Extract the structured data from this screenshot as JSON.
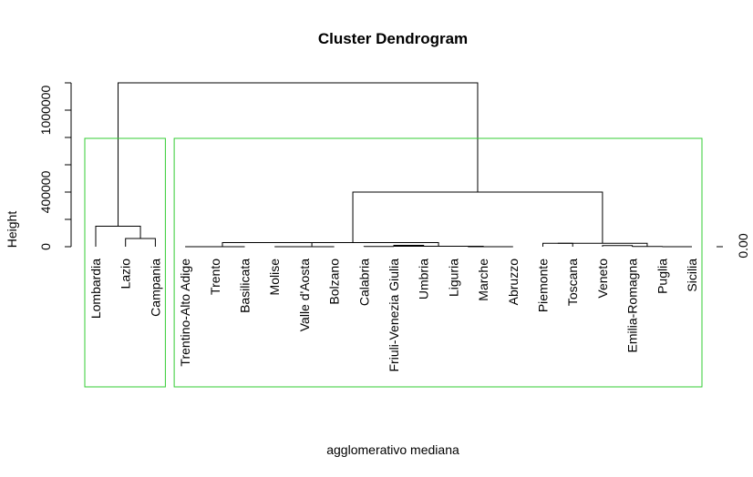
{
  "chart_data": {
    "type": "dendrogram",
    "title": "Cluster Dendrogram",
    "xlabel": "agglomerativo mediana",
    "ylabel": "Height",
    "ylim": [
      0,
      1200000
    ],
    "y_ticks": [
      {
        "value": 0,
        "label": "0"
      },
      {
        "value": 200000,
        "label": ""
      },
      {
        "value": 400000,
        "label": "400000"
      },
      {
        "value": 600000,
        "label": ""
      },
      {
        "value": 800000,
        "label": ""
      },
      {
        "value": 1000000,
        "label": "1000000"
      },
      {
        "value": 1200000,
        "label": ""
      }
    ],
    "side_axis_label": "0.00",
    "leaves": [
      "Lombardia",
      "Lazio",
      "Campania",
      "Trentino-Alto Adige",
      "Trento",
      "Basilicata",
      "Molise",
      "Valle d'Aosta",
      "Bolzano",
      "Calabria",
      "Friuli-Venezia Giulia",
      "Umbria",
      "Liguria",
      "Marche",
      "Abruzzo",
      "Piemonte",
      "Toscana",
      "Veneto",
      "Emilia-Romagna",
      "Puglia",
      "Sicilia"
    ],
    "merges": [
      {
        "a": [
          1
        ],
        "b": [
          2
        ],
        "height": 60000
      },
      {
        "a": [
          0
        ],
        "b": [
          1,
          2
        ],
        "height": 150000
      },
      {
        "a": [
          3
        ],
        "b": [
          4
        ],
        "height": 0
      },
      {
        "a": [
          3,
          4
        ],
        "b": [
          5
        ],
        "height": 0
      },
      {
        "a": [
          6
        ],
        "b": [
          7
        ],
        "height": 0
      },
      {
        "a": [
          6,
          7
        ],
        "b": [
          8
        ],
        "height": 0
      },
      {
        "a": [
          3,
          4,
          5
        ],
        "b": [
          6,
          7,
          8
        ],
        "height": 30000
      },
      {
        "a": [
          9
        ],
        "b": [
          10
        ],
        "height": 2000
      },
      {
        "a": [
          10
        ],
        "b": [
          11
        ],
        "height": 10000
      },
      {
        "a": [
          9,
          10,
          11
        ],
        "b": [
          12
        ],
        "height": 3000
      },
      {
        "a": [
          12
        ],
        "b": [
          13
        ],
        "height": 3000
      },
      {
        "a": [
          12,
          13
        ],
        "b": [
          14
        ],
        "height": 0
      },
      {
        "a": [
          9,
          10,
          11,
          12,
          13,
          14
        ],
        "b": [
          3,
          4,
          5,
          6,
          7,
          8
        ],
        "height": 30000
      },
      {
        "a": [
          15
        ],
        "b": [
          16
        ],
        "height": 25000
      },
      {
        "a": [
          17
        ],
        "b": [
          18
        ],
        "height": 8000
      },
      {
        "a": [
          18
        ],
        "b": [
          19
        ],
        "height": 2000
      },
      {
        "a": [
          19
        ],
        "b": [
          20
        ],
        "height": 0
      },
      {
        "a": [
          15,
          16
        ],
        "b": [
          17,
          18,
          19,
          20
        ],
        "height": 25000
      },
      {
        "a": [
          3,
          4,
          5,
          6,
          7,
          8,
          9,
          10,
          11,
          12,
          13,
          14
        ],
        "b": [
          15,
          16,
          17,
          18,
          19,
          20
        ],
        "height": 400000
      },
      {
        "a": [
          0,
          1,
          2
        ],
        "b": [
          3,
          4,
          5,
          6,
          7,
          8,
          9,
          10,
          11,
          12,
          13,
          14,
          15,
          16,
          17,
          18,
          19,
          20
        ],
        "height": 1200000
      }
    ],
    "cluster_boxes": [
      {
        "from": 0,
        "to": 2
      },
      {
        "from": 3,
        "to": 20
      }
    ],
    "colors": {
      "tree": "#000000",
      "box": "#33cc33"
    }
  }
}
